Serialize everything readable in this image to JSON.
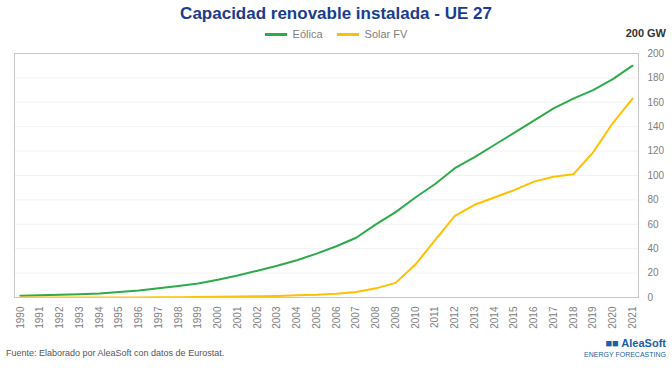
{
  "chart_data": {
    "type": "line",
    "title": "Capacidad renovable instalada - UE 27",
    "ylabel": "200 GW",
    "annotations": [
      "Fuente: Elaborado por AleaSoft con datos de Eurostat.",
      "■■ AleaSoft",
      "ENERGY FORECASTING"
    ],
    "x": [
      1990,
      1991,
      1992,
      1993,
      1994,
      1995,
      1996,
      1997,
      1998,
      1999,
      2000,
      2001,
      2002,
      2003,
      2004,
      2005,
      2006,
      2007,
      2008,
      2009,
      2010,
      2011,
      2012,
      2013,
      2014,
      2015,
      2016,
      2017,
      2018,
      2019,
      2020,
      2021
    ],
    "series": [
      {
        "name": "Eólica",
        "color": "#2EAA4A",
        "values": [
          1.5,
          1.8,
          2.2,
          2.7,
          3.2,
          4.5,
          5.8,
          7.5,
          9.5,
          11.5,
          14.5,
          18.0,
          22.0,
          26.0,
          30.5,
          36.0,
          42.0,
          49.0,
          60.0,
          70.0,
          82.0,
          93.0,
          106.0,
          115.0,
          125.0,
          135.0,
          145.0,
          155.0,
          163.0,
          170.0,
          179.0,
          190.0
        ]
      },
      {
        "name": "Solar FV",
        "color": "#FFC000",
        "values": [
          0.05,
          0.05,
          0.05,
          0.05,
          0.05,
          0.05,
          0.1,
          0.2,
          0.3,
          0.4,
          0.6,
          0.8,
          1.0,
          1.3,
          1.8,
          2.2,
          3.0,
          4.5,
          7.5,
          12.0,
          27.0,
          47.0,
          67.0,
          76.0,
          82.0,
          88.0,
          95.0,
          99.0,
          101.0,
          119.0,
          143.0,
          163.0
        ]
      }
    ],
    "xlim": [
      1989.7,
      2021.3
    ],
    "xticks": [
      1990,
      1991,
      1992,
      1993,
      1994,
      1995,
      1996,
      1997,
      1998,
      1999,
      2000,
      2001,
      2002,
      2003,
      2004,
      2005,
      2006,
      2007,
      2008,
      2009,
      2010,
      2011,
      2012,
      2013,
      2014,
      2015,
      2016,
      2017,
      2018,
      2019,
      2020,
      2021
    ],
    "ylim": [
      0,
      200
    ],
    "yticks": [
      0,
      20,
      40,
      60,
      80,
      100,
      120,
      140,
      160,
      180,
      200
    ],
    "grid": true,
    "legend": "top"
  }
}
